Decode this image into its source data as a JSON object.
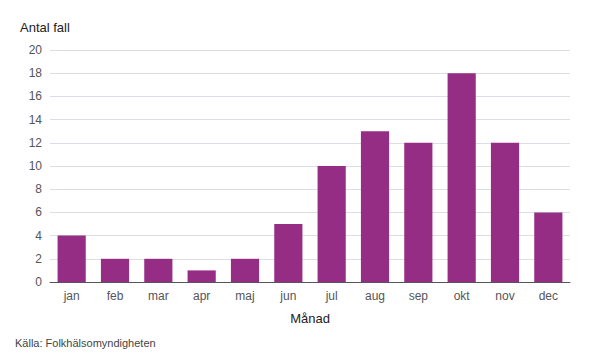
{
  "chart_data": {
    "type": "bar",
    "categories": [
      "jan",
      "feb",
      "mar",
      "apr",
      "maj",
      "jun",
      "jul",
      "aug",
      "sep",
      "okt",
      "nov",
      "dec"
    ],
    "values": [
      4,
      2,
      2,
      1,
      2,
      5,
      10,
      13,
      12,
      18,
      12,
      6
    ],
    "color": "#952D84",
    "ylabel": "Antal fall",
    "xlabel": "Månad",
    "annotations": [
      "Källa: Folkhälsomyndigheten"
    ],
    "ylim": [
      0,
      20
    ],
    "yticks": [
      0,
      2,
      4,
      6,
      8,
      10,
      12,
      14,
      16,
      18,
      20
    ],
    "grid": true
  }
}
